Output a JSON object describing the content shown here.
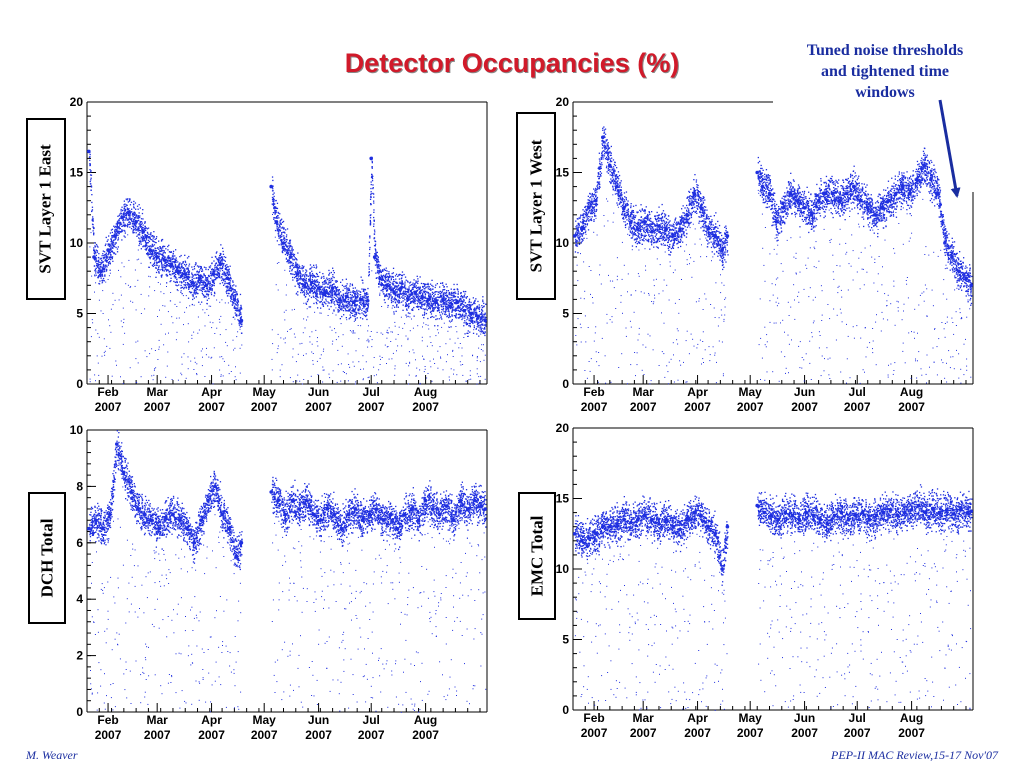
{
  "title": "Detector Occupancies (%)",
  "annotation": {
    "line1": "Tuned noise thresholds",
    "line2": "and tightened time",
    "line3": "windows"
  },
  "footer": {
    "left": "M. Weaver",
    "right": "PEP-II  MAC Review,15-17 Nov'07"
  },
  "colors": {
    "title": "#d11a2a",
    "data": "#1f2fe0",
    "annotation": "#1a2da0"
  },
  "chart_data": [
    {
      "type": "scatter",
      "ylabel": "SVT Layer 1 East",
      "ylim": [
        0,
        20
      ],
      "yticks": [
        0,
        5,
        10,
        15,
        20
      ],
      "xlim": [
        "2007-01-20",
        "2007-09-05"
      ],
      "xticks": [
        "Feb 2007",
        "Mar 2007",
        "Apr 2007",
        "May 2007",
        "Jun 2007",
        "Jul 2007",
        "Aug 2007"
      ],
      "grid": false,
      "gaps": [
        [
          "2007-04-19",
          "2007-05-04"
        ]
      ],
      "points": [
        [
          "2007-01-21",
          16.5
        ],
        [
          "2007-01-24",
          9.0
        ],
        [
          "2007-01-28",
          8.0
        ],
        [
          "2007-02-01",
          9.5
        ],
        [
          "2007-02-05",
          10.5
        ],
        [
          "2007-02-09",
          11.8
        ],
        [
          "2007-02-13",
          12.2
        ],
        [
          "2007-02-17",
          11.5
        ],
        [
          "2007-02-21",
          10.8
        ],
        [
          "2007-02-25",
          9.5
        ],
        [
          "2007-03-01",
          9.0
        ],
        [
          "2007-03-05",
          8.8
        ],
        [
          "2007-03-09",
          8.5
        ],
        [
          "2007-03-13",
          8.0
        ],
        [
          "2007-03-17",
          7.8
        ],
        [
          "2007-03-21",
          7.2
        ],
        [
          "2007-03-25",
          7.5
        ],
        [
          "2007-03-29",
          7.0
        ],
        [
          "2007-04-02",
          7.8
        ],
        [
          "2007-04-06",
          8.5
        ],
        [
          "2007-04-10",
          7.5
        ],
        [
          "2007-04-14",
          6.0
        ],
        [
          "2007-04-18",
          4.5
        ],
        [
          "2007-05-05",
          14.0
        ],
        [
          "2007-05-08",
          11.5
        ],
        [
          "2007-05-12",
          10.0
        ],
        [
          "2007-05-16",
          9.0
        ],
        [
          "2007-05-20",
          7.8
        ],
        [
          "2007-05-24",
          7.0
        ],
        [
          "2007-05-28",
          7.2
        ],
        [
          "2007-06-01",
          6.8
        ],
        [
          "2007-06-05",
          6.5
        ],
        [
          "2007-06-09",
          6.8
        ],
        [
          "2007-06-13",
          6.0
        ],
        [
          "2007-06-17",
          6.2
        ],
        [
          "2007-06-21",
          5.8
        ],
        [
          "2007-06-25",
          6.0
        ],
        [
          "2007-06-29",
          5.9
        ],
        [
          "2007-07-01",
          16.0
        ],
        [
          "2007-07-03",
          9.0
        ],
        [
          "2007-07-06",
          7.5
        ],
        [
          "2007-07-10",
          7.0
        ],
        [
          "2007-07-14",
          6.5
        ],
        [
          "2007-07-18",
          6.8
        ],
        [
          "2007-07-22",
          6.0
        ],
        [
          "2007-07-26",
          6.5
        ],
        [
          "2007-07-30",
          6.2
        ],
        [
          "2007-08-03",
          6.0
        ],
        [
          "2007-08-07",
          5.8
        ],
        [
          "2007-08-11",
          6.0
        ],
        [
          "2007-08-15",
          5.5
        ],
        [
          "2007-08-19",
          5.8
        ],
        [
          "2007-08-23",
          5.2
        ],
        [
          "2007-08-27",
          5.0
        ],
        [
          "2007-08-31",
          4.8
        ],
        [
          "2007-09-04",
          4.5
        ]
      ]
    },
    {
      "type": "scatter",
      "ylabel": "SVT Layer 1 West",
      "ylim": [
        0,
        20
      ],
      "yticks": [
        0,
        5,
        10,
        15,
        20
      ],
      "xlim": [
        "2007-01-20",
        "2007-09-05"
      ],
      "xticks": [
        "Feb 2007",
        "Mar 2007",
        "Apr 2007",
        "May 2007",
        "Jun 2007",
        "Jul 2007",
        "Aug 2007"
      ],
      "grid": false,
      "gaps": [
        [
          "2007-04-19",
          "2007-05-04"
        ]
      ],
      "points": [
        [
          "2007-01-21",
          10.5
        ],
        [
          "2007-01-25",
          11.0
        ],
        [
          "2007-01-29",
          12.5
        ],
        [
          "2007-02-02",
          13.0
        ],
        [
          "2007-02-06",
          17.5
        ],
        [
          "2007-02-10",
          15.5
        ],
        [
          "2007-02-14",
          14.0
        ],
        [
          "2007-02-18",
          12.5
        ],
        [
          "2007-02-22",
          11.5
        ],
        [
          "2007-02-26",
          11.0
        ],
        [
          "2007-03-02",
          11.5
        ],
        [
          "2007-03-06",
          10.8
        ],
        [
          "2007-03-10",
          11.2
        ],
        [
          "2007-03-14",
          11.0
        ],
        [
          "2007-03-18",
          10.5
        ],
        [
          "2007-03-22",
          11.0
        ],
        [
          "2007-03-26",
          12.0
        ],
        [
          "2007-03-30",
          13.5
        ],
        [
          "2007-04-03",
          12.5
        ],
        [
          "2007-04-07",
          11.0
        ],
        [
          "2007-04-11",
          10.5
        ],
        [
          "2007-04-15",
          9.5
        ],
        [
          "2007-04-18",
          10.5
        ],
        [
          "2007-05-05",
          15.0
        ],
        [
          "2007-05-08",
          14.0
        ],
        [
          "2007-05-12",
          13.5
        ],
        [
          "2007-05-16",
          11.5
        ],
        [
          "2007-05-20",
          12.5
        ],
        [
          "2007-05-24",
          13.5
        ],
        [
          "2007-05-28",
          13.0
        ],
        [
          "2007-06-01",
          12.5
        ],
        [
          "2007-06-05",
          12.0
        ],
        [
          "2007-06-09",
          13.0
        ],
        [
          "2007-06-13",
          13.5
        ],
        [
          "2007-06-17",
          13.5
        ],
        [
          "2007-06-21",
          13.0
        ],
        [
          "2007-06-25",
          13.5
        ],
        [
          "2007-06-29",
          14.0
        ],
        [
          "2007-07-03",
          13.0
        ],
        [
          "2007-07-07",
          12.5
        ],
        [
          "2007-07-11",
          12.0
        ],
        [
          "2007-07-15",
          12.5
        ],
        [
          "2007-07-19",
          13.0
        ],
        [
          "2007-07-23",
          13.5
        ],
        [
          "2007-07-27",
          14.0
        ],
        [
          "2007-07-31",
          13.5
        ],
        [
          "2007-08-04",
          14.5
        ],
        [
          "2007-08-08",
          15.5
        ],
        [
          "2007-08-12",
          14.5
        ],
        [
          "2007-08-16",
          13.5
        ],
        [
          "2007-08-20",
          10.0
        ],
        [
          "2007-08-24",
          9.0
        ],
        [
          "2007-08-28",
          8.0
        ],
        [
          "2007-09-01",
          7.5
        ],
        [
          "2007-09-04",
          7.0
        ]
      ]
    },
    {
      "type": "scatter",
      "ylabel": "DCH Total",
      "ylim": [
        0,
        10
      ],
      "yticks": [
        0,
        2,
        4,
        6,
        8,
        10
      ],
      "xlim": [
        "2007-01-20",
        "2007-09-05"
      ],
      "xticks": [
        "Feb 2007",
        "Mar 2007",
        "Apr 2007",
        "May 2007",
        "Jun 2007",
        "Jul 2007",
        "Aug 2007"
      ],
      "grid": false,
      "gaps": [
        [
          "2007-04-19",
          "2007-05-04"
        ]
      ],
      "points": [
        [
          "2007-01-21",
          6.5
        ],
        [
          "2007-01-25",
          6.8
        ],
        [
          "2007-01-29",
          6.5
        ],
        [
          "2007-02-02",
          7.0
        ],
        [
          "2007-02-06",
          9.5
        ],
        [
          "2007-02-10",
          8.5
        ],
        [
          "2007-02-14",
          7.8
        ],
        [
          "2007-02-18",
          7.2
        ],
        [
          "2007-02-22",
          7.0
        ],
        [
          "2007-02-26",
          6.8
        ],
        [
          "2007-03-02",
          6.5
        ],
        [
          "2007-03-06",
          6.9
        ],
        [
          "2007-03-10",
          7.0
        ],
        [
          "2007-03-14",
          6.8
        ],
        [
          "2007-03-18",
          6.5
        ],
        [
          "2007-03-22",
          6.0
        ],
        [
          "2007-03-26",
          6.8
        ],
        [
          "2007-03-30",
          7.5
        ],
        [
          "2007-04-03",
          8.0
        ],
        [
          "2007-04-07",
          7.0
        ],
        [
          "2007-04-11",
          6.5
        ],
        [
          "2007-04-15",
          5.5
        ],
        [
          "2007-04-18",
          6.0
        ],
        [
          "2007-05-05",
          7.8
        ],
        [
          "2007-05-09",
          7.5
        ],
        [
          "2007-05-13",
          7.0
        ],
        [
          "2007-05-17",
          7.5
        ],
        [
          "2007-05-21",
          7.2
        ],
        [
          "2007-05-25",
          7.5
        ],
        [
          "2007-05-29",
          7.0
        ],
        [
          "2007-06-02",
          6.8
        ],
        [
          "2007-06-06",
          7.2
        ],
        [
          "2007-06-10",
          7.0
        ],
        [
          "2007-06-14",
          6.5
        ],
        [
          "2007-06-18",
          7.0
        ],
        [
          "2007-06-22",
          7.2
        ],
        [
          "2007-06-26",
          6.8
        ],
        [
          "2007-06-30",
          7.0
        ],
        [
          "2007-07-04",
          7.2
        ],
        [
          "2007-07-08",
          6.8
        ],
        [
          "2007-07-12",
          7.0
        ],
        [
          "2007-07-16",
          6.5
        ],
        [
          "2007-07-20",
          7.0
        ],
        [
          "2007-07-24",
          7.2
        ],
        [
          "2007-07-28",
          6.8
        ],
        [
          "2007-08-01",
          7.5
        ],
        [
          "2007-08-05",
          7.2
        ],
        [
          "2007-08-09",
          7.0
        ],
        [
          "2007-08-13",
          7.3
        ],
        [
          "2007-08-17",
          6.8
        ],
        [
          "2007-08-21",
          7.5
        ],
        [
          "2007-08-25",
          7.2
        ],
        [
          "2007-08-29",
          7.5
        ],
        [
          "2007-09-02",
          7.3
        ],
        [
          "2007-09-04",
          7.2
        ]
      ]
    },
    {
      "type": "scatter",
      "ylabel": "EMC Total",
      "ylim": [
        0,
        20
      ],
      "yticks": [
        0,
        5,
        10,
        15,
        20
      ],
      "xlim": [
        "2007-01-20",
        "2007-09-05"
      ],
      "xticks": [
        "Feb 2007",
        "Mar 2007",
        "Apr 2007",
        "May 2007",
        "Jun 2007",
        "Jul 2007",
        "Aug 2007"
      ],
      "grid": false,
      "gaps": [
        [
          "2007-04-19",
          "2007-05-04"
        ]
      ],
      "points": [
        [
          "2007-01-21",
          12.5
        ],
        [
          "2007-01-25",
          12.0
        ],
        [
          "2007-01-29",
          12.2
        ],
        [
          "2007-02-02",
          12.5
        ],
        [
          "2007-02-06",
          13.0
        ],
        [
          "2007-02-10",
          13.0
        ],
        [
          "2007-02-14",
          13.2
        ],
        [
          "2007-02-18",
          13.5
        ],
        [
          "2007-02-22",
          13.3
        ],
        [
          "2007-02-26",
          13.5
        ],
        [
          "2007-03-02",
          13.8
        ],
        [
          "2007-03-06",
          13.5
        ],
        [
          "2007-03-10",
          13.2
        ],
        [
          "2007-03-14",
          13.5
        ],
        [
          "2007-03-18",
          13.0
        ],
        [
          "2007-03-22",
          12.8
        ],
        [
          "2007-03-26",
          13.5
        ],
        [
          "2007-03-30",
          14.0
        ],
        [
          "2007-04-03",
          13.8
        ],
        [
          "2007-04-07",
          13.0
        ],
        [
          "2007-04-11",
          12.5
        ],
        [
          "2007-04-15",
          10.0
        ],
        [
          "2007-04-18",
          13.0
        ],
        [
          "2007-05-05",
          14.5
        ],
        [
          "2007-05-09",
          14.0
        ],
        [
          "2007-05-13",
          13.8
        ],
        [
          "2007-05-17",
          13.5
        ],
        [
          "2007-05-21",
          14.0
        ],
        [
          "2007-05-25",
          13.8
        ],
        [
          "2007-05-29",
          13.5
        ],
        [
          "2007-06-02",
          14.0
        ],
        [
          "2007-06-06",
          13.8
        ],
        [
          "2007-06-10",
          13.5
        ],
        [
          "2007-06-14",
          13.2
        ],
        [
          "2007-06-18",
          13.8
        ],
        [
          "2007-06-22",
          14.0
        ],
        [
          "2007-06-26",
          13.5
        ],
        [
          "2007-06-30",
          13.8
        ],
        [
          "2007-07-04",
          14.0
        ],
        [
          "2007-07-08",
          13.5
        ],
        [
          "2007-07-12",
          13.8
        ],
        [
          "2007-07-16",
          14.0
        ],
        [
          "2007-07-20",
          14.2
        ],
        [
          "2007-07-24",
          13.8
        ],
        [
          "2007-07-28",
          14.0
        ],
        [
          "2007-08-01",
          14.2
        ],
        [
          "2007-08-05",
          14.5
        ],
        [
          "2007-08-09",
          14.0
        ],
        [
          "2007-08-13",
          14.3
        ],
        [
          "2007-08-17",
          14.0
        ],
        [
          "2007-08-21",
          14.2
        ],
        [
          "2007-08-25",
          13.9
        ],
        [
          "2007-08-29",
          14.2
        ],
        [
          "2007-09-02",
          14.0
        ],
        [
          "2007-09-04",
          14.1
        ]
      ]
    }
  ]
}
